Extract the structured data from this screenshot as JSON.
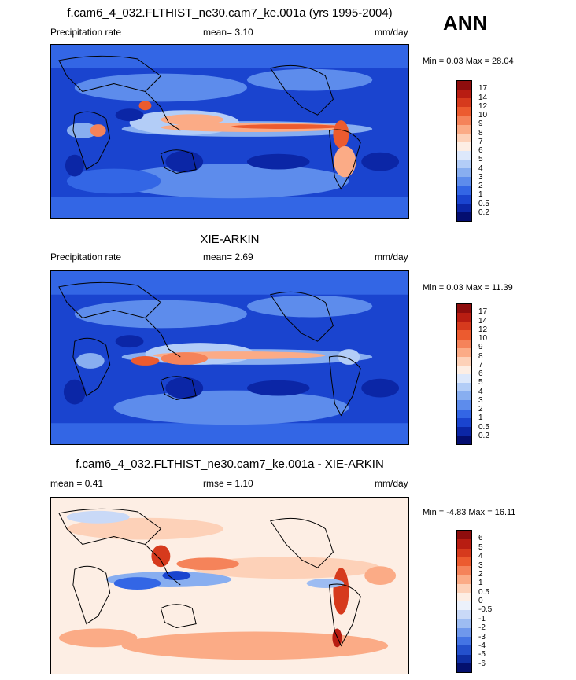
{
  "season": "ANN",
  "panels": [
    {
      "title": "f.cam6_4_032.FLTHIST_ne30.cam7_ke.001a (yrs 1995-2004)",
      "left_label": "Precipitation rate",
      "center_label": "mean=   3.10",
      "right_label": "mm/day",
      "minmax": "Min =   0.03 Max =  28.04",
      "colorbar": {
        "labels": [
          "17",
          "14",
          "12",
          "10",
          "9",
          "8",
          "7",
          "6",
          "5",
          "4",
          "3",
          "2",
          "1",
          "0.5",
          "0.2"
        ],
        "colors": [
          "#8e0d0d",
          "#b81d12",
          "#d63a1d",
          "#ec5b2f",
          "#f5835a",
          "#fbab86",
          "#fdd1b8",
          "#fdeee4",
          "#dde8fb",
          "#b3cdf7",
          "#88aef0",
          "#5d8cec",
          "#3366e5",
          "#1a44cf",
          "#0b26a6",
          "#040e70"
        ]
      }
    },
    {
      "title": "XIE-ARKIN",
      "left_label": "Precipitation rate",
      "center_label": "mean=   2.69",
      "right_label": "mm/day",
      "minmax": "Min =   0.03 Max =  11.39",
      "colorbar": {
        "labels": [
          "17",
          "14",
          "12",
          "10",
          "9",
          "8",
          "7",
          "6",
          "5",
          "4",
          "3",
          "2",
          "1",
          "0.5",
          "0.2"
        ],
        "colors": [
          "#8e0d0d",
          "#b81d12",
          "#d63a1d",
          "#ec5b2f",
          "#f5835a",
          "#fbab86",
          "#fdd1b8",
          "#fdeee4",
          "#dde8fb",
          "#b3cdf7",
          "#88aef0",
          "#5d8cec",
          "#3366e5",
          "#1a44cf",
          "#0b26a6",
          "#040e70"
        ]
      }
    },
    {
      "title": "f.cam6_4_032.FLTHIST_ne30.cam7_ke.001a - XIE-ARKIN",
      "left_label": "mean =   0.41",
      "center_label": "rmse =   1.10",
      "right_label": "mm/day",
      "minmax": "Min =  -4.83 Max =  16.11",
      "colorbar": {
        "labels": [
          "6",
          "5",
          "4",
          "3",
          "2",
          "1",
          "0.5",
          "0",
          "-0.5",
          "-1",
          "-2",
          "-3",
          "-4",
          "-5",
          "-6"
        ],
        "colors": [
          "#8e0d0d",
          "#b81d12",
          "#d63a1d",
          "#ec5b2f",
          "#f5835a",
          "#fbab86",
          "#fdd1b8",
          "#fdeee4",
          "#ecf1fb",
          "#c9d9f7",
          "#9dbcf2",
          "#6f98ec",
          "#4474e4",
          "#2450cc",
          "#0f2fa4",
          "#04106e"
        ]
      }
    }
  ]
}
